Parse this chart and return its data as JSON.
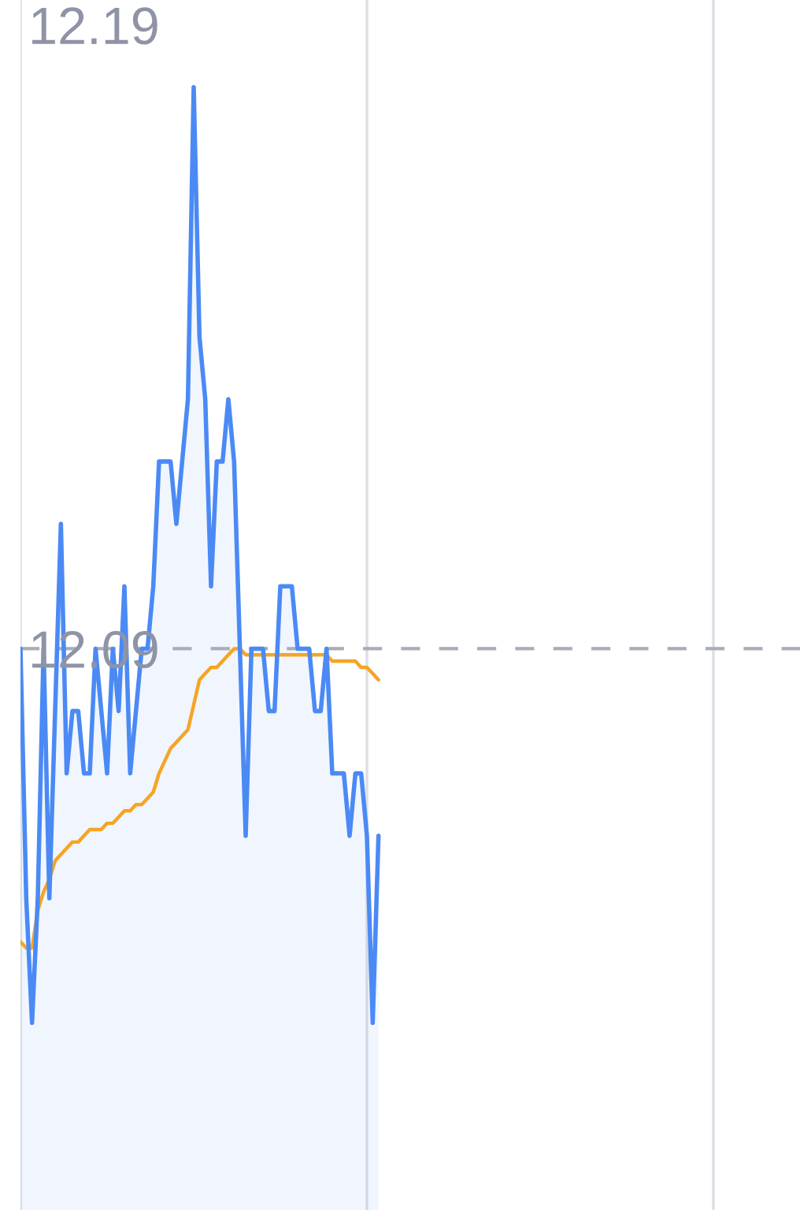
{
  "chart_data": {
    "type": "area",
    "categories": [
      null,
      null,
      null,
      null,
      null,
      null,
      null,
      null,
      null,
      null,
      null,
      null,
      null,
      null,
      null,
      null,
      null,
      null,
      null,
      null,
      null,
      null,
      null,
      null,
      null,
      null,
      null,
      null,
      null,
      null,
      null,
      null,
      null,
      null,
      null,
      null,
      null,
      null,
      null,
      null,
      null,
      null,
      null,
      null,
      null,
      null,
      null,
      null,
      null,
      null,
      null,
      null,
      null,
      null,
      null,
      null,
      null,
      null,
      null,
      null,
      null,
      null,
      null,
      null,
      null,
      null,
      null,
      null,
      null,
      null,
      null,
      null,
      null,
      null,
      null,
      null,
      null,
      null,
      null,
      null,
      null,
      null,
      null,
      null,
      null,
      null,
      null,
      null,
      null,
      null,
      null,
      null,
      null,
      null,
      null,
      null,
      null,
      null,
      null,
      null,
      null,
      null,
      null,
      null,
      null,
      null,
      null,
      null,
      null,
      null,
      null,
      null,
      null,
      null,
      null,
      null,
      null,
      null,
      null,
      null,
      null,
      null,
      null,
      null,
      null,
      null,
      null,
      null,
      null,
      null,
      null,
      null,
      null,
      null,
      null,
      null
    ],
    "series": [
      {
        "color": "#4b8af5",
        "values": [
          12.09,
          12.05,
          12.03,
          12.05,
          12.09,
          12.05,
          12.08,
          12.11,
          12.07,
          12.08,
          12.08,
          12.07,
          12.07,
          12.09,
          12.08,
          12.07,
          12.09,
          12.08,
          12.1,
          12.07,
          12.08,
          12.09,
          12.09,
          12.1,
          12.12,
          12.12,
          12.12,
          12.11,
          12.12,
          12.13,
          12.18,
          12.14,
          12.13,
          12.1,
          12.12,
          12.12,
          12.13,
          12.12,
          12.09,
          12.06,
          12.09,
          12.09,
          12.09,
          12.08,
          12.08,
          12.1,
          12.1,
          12.1,
          12.09,
          12.09,
          12.09,
          12.08,
          12.08,
          12.09,
          12.07,
          12.07,
          12.07,
          12.06,
          12.07,
          12.07,
          12.06,
          12.03,
          12.06,
          null,
          null,
          null,
          null,
          null,
          null,
          null,
          null,
          null,
          null,
          null,
          null,
          null,
          null,
          null,
          null,
          null,
          null,
          null,
          null,
          null,
          null,
          null,
          null,
          null,
          null,
          null,
          null,
          null,
          null,
          null,
          null,
          null,
          null,
          null,
          null,
          null,
          null,
          null,
          null,
          null,
          null,
          null,
          null,
          null,
          null,
          null,
          null,
          null,
          null,
          null,
          null,
          null,
          null,
          null,
          null,
          null,
          null,
          null,
          null,
          null,
          null,
          null,
          null,
          null,
          null,
          null,
          null,
          null,
          null,
          null,
          null,
          null
        ]
      },
      {
        "type": "line",
        "color": "#f5a524",
        "values": [
          12.043,
          12.042,
          12.042,
          12.048,
          12.051,
          12.053,
          12.056,
          12.057,
          12.058,
          12.059,
          12.059,
          12.06,
          12.061,
          12.061,
          12.061,
          12.062,
          12.062,
          12.063,
          12.064,
          12.064,
          12.065,
          12.065,
          12.066,
          12.067,
          12.07,
          12.072,
          12.074,
          12.075,
          12.076,
          12.077,
          12.081,
          12.085,
          12.086,
          12.087,
          12.087,
          12.088,
          12.089,
          12.09,
          12.09,
          12.089,
          12.089,
          12.089,
          12.089,
          12.089,
          12.089,
          12.089,
          12.089,
          12.089,
          12.089,
          12.089,
          12.089,
          12.089,
          12.089,
          12.089,
          12.088,
          12.088,
          12.088,
          12.088,
          12.088,
          12.087,
          12.087,
          12.086,
          12.085,
          null,
          null,
          null,
          null,
          null,
          null,
          null,
          null,
          null,
          null,
          null,
          null,
          null,
          null,
          null,
          null,
          null,
          null,
          null,
          null,
          null,
          null,
          null,
          null,
          null,
          null,
          null,
          null,
          null,
          null,
          null,
          null,
          null,
          null,
          null,
          null,
          null,
          null,
          null,
          null,
          null,
          null,
          null,
          null,
          null,
          null,
          null,
          null,
          null,
          null,
          null,
          null,
          null,
          null,
          null,
          null,
          null,
          null,
          null,
          null,
          null,
          null,
          null,
          null,
          null,
          null,
          null,
          null,
          null,
          null,
          null,
          null,
          null
        ]
      }
    ],
    "ylim": [
      12.0,
      12.194
    ],
    "yticks": [
      12.09,
      12.19
    ],
    "tick_labels": "y",
    "grid": "x",
    "ref_lines": [
      {
        "axis": "y",
        "value": 12.09,
        "color": "#a9adb9",
        "line_style": "dashed"
      }
    ]
  }
}
